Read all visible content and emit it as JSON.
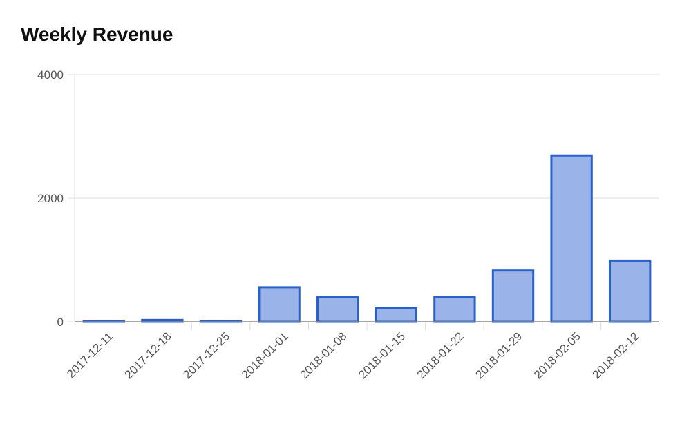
{
  "chart_data": {
    "type": "bar",
    "title": "Weekly Revenue",
    "xlabel": "",
    "ylabel": "",
    "categories": [
      "2017-12-11",
      "2017-12-18",
      "2017-12-25",
      "2018-01-01",
      "2018-01-08",
      "2018-01-15",
      "2018-01-22",
      "2018-01-29",
      "2018-02-05",
      "2018-02-12"
    ],
    "values": [
      15,
      30,
      15,
      560,
      400,
      220,
      400,
      830,
      2690,
      990
    ],
    "ylim": [
      0,
      4000
    ],
    "yticks": [
      "0",
      "2000",
      "4000"
    ],
    "grid": true,
    "legend": "none",
    "colors": {
      "bar_fill": "#9ab4ea",
      "bar_stroke": "#2a60cc",
      "grid": "#dcdcdc",
      "axis": "#888888"
    }
  }
}
